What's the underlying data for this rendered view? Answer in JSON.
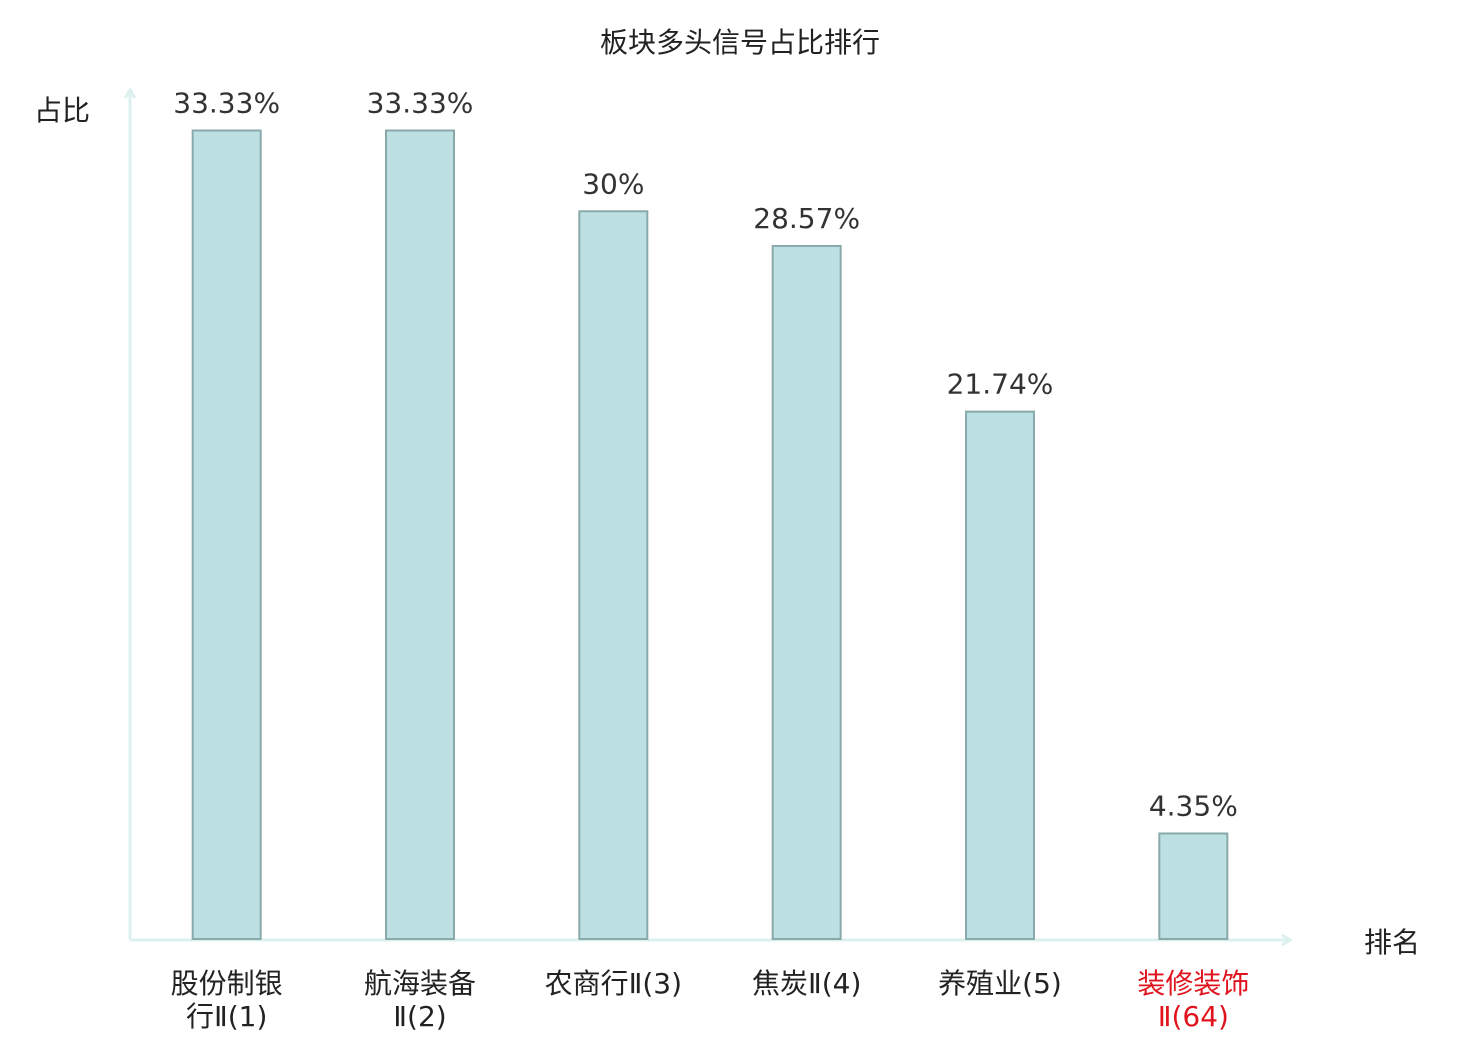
{
  "chart_data": {
    "type": "bar",
    "title": "板块多头信号占比排行",
    "y_label": "占比",
    "x_label": "排名",
    "categories": [
      "股份制银行Ⅱ(1)",
      "航海装备Ⅱ(2)",
      "农商行Ⅱ(3)",
      "焦炭Ⅱ(4)",
      "养殖业(5)",
      "装修装饰Ⅱ(64)"
    ],
    "values": [
      33.33,
      33.33,
      30,
      28.57,
      21.74,
      4.35
    ],
    "value_labels": [
      "33.33%",
      "33.33%",
      "30%",
      "28.57%",
      "21.74%",
      "4.35%"
    ],
    "color": "#bde1e3",
    "edge_color": "#8aa9aa",
    "label_colors": [
      "#222222",
      "#222222",
      "#222222",
      "#222222",
      "#222222",
      "#e0141e"
    ],
    "ylim": [
      0,
      35
    ]
  }
}
